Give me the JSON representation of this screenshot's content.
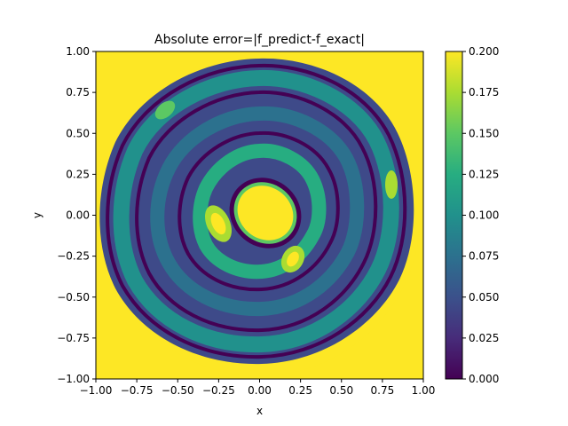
{
  "chart_data": {
    "type": "heatmap",
    "title": "Absolute error=|f_predict-f_exact|",
    "xlabel": "x",
    "ylabel": "y",
    "xlim": [
      -1.0,
      1.0
    ],
    "ylim": [
      -1.0,
      1.0
    ],
    "xticks": [
      "−1.00",
      "−0.75",
      "−0.50",
      "−0.25",
      "0.00",
      "0.25",
      "0.50",
      "0.75",
      "1.00"
    ],
    "yticks": [
      "1.00",
      "0.75",
      "0.50",
      "0.25",
      "0.00",
      "−0.25",
      "−0.50",
      "−0.75",
      "−1.00"
    ],
    "domain_shape": "disk of radius 1 (outside region saturated at colorbar max)",
    "colormap": "viridis",
    "colorbar": {
      "min": 0.0,
      "max": 0.2,
      "ticks": [
        "0.000",
        "0.025",
        "0.050",
        "0.075",
        "0.100",
        "0.125",
        "0.150",
        "0.175",
        "0.200"
      ]
    },
    "features": [
      {
        "description": "saturated error spot",
        "center": [
          0.03,
          0.0
        ],
        "value": 0.2
      },
      {
        "description": "secondary peak",
        "center": [
          -0.25,
          -0.05
        ],
        "value": 0.19
      },
      {
        "description": "secondary peak",
        "center": [
          0.2,
          -0.28
        ],
        "value": 0.18
      },
      {
        "description": "outer ring band",
        "radius": 0.78,
        "value": 0.12
      },
      {
        "description": "mid ring band",
        "radius": 0.45,
        "value": 0.1
      },
      {
        "description": "edge peak",
        "center": [
          0.82,
          0.18
        ],
        "value": 0.17
      }
    ],
    "grid": false
  }
}
